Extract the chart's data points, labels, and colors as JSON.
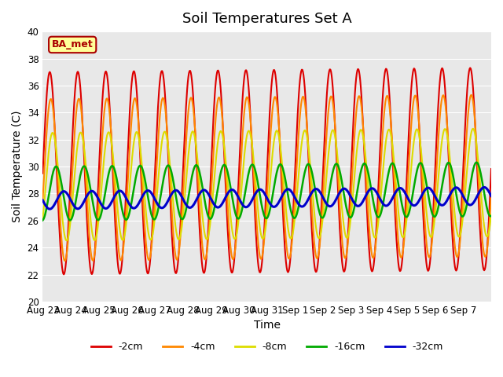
{
  "title": "Soil Temperatures Set A",
  "xlabel": "Time",
  "ylabel": "Soil Temperature (C)",
  "ylim": [
    20,
    40
  ],
  "yticks": [
    20,
    22,
    24,
    26,
    28,
    30,
    32,
    34,
    36,
    38,
    40
  ],
  "date_labels": [
    "Aug 23",
    "Aug 24",
    "Aug 25",
    "Aug 26",
    "Aug 27",
    "Aug 28",
    "Aug 29",
    "Aug 30",
    "Aug 31",
    "Sep 1",
    "Sep 2",
    "Sep 3",
    "Sep 4",
    "Sep 5",
    "Sep 6",
    "Sep 7"
  ],
  "colors": {
    "-2cm": "#dd0000",
    "-4cm": "#ff8800",
    "-8cm": "#dddd00",
    "-16cm": "#00aa00",
    "-32cm": "#0000cc"
  },
  "line_widths": {
    "-2cm": 1.5,
    "-4cm": 1.5,
    "-8cm": 1.5,
    "-16cm": 1.8,
    "-32cm": 2.2
  },
  "label_text": "BA_met",
  "label_bg": "#ffff99",
  "label_border": "#aa0000",
  "label_color": "#aa0000",
  "bg_color": "#e8e8e8",
  "title_fontsize": 13,
  "axis_fontsize": 10,
  "tick_fontsize": 8.5
}
